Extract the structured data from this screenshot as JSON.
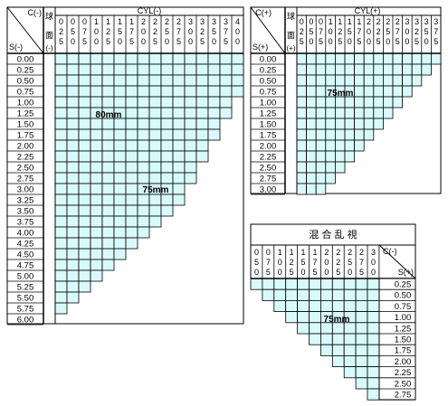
{
  "cyl_minus_table": {
    "corner_top": "C(-)",
    "corner_bottom": "S(-)",
    "sphere_col_header": [
      "球",
      "面",
      "(-)"
    ],
    "cyl_label": "CYL(-)",
    "cyl_values": [
      "0.25",
      "0.50",
      "0.75",
      "1.00",
      "1.25",
      "1.50",
      "1.75",
      "2.00",
      "2.25",
      "2.50",
      "2.75",
      "3.00",
      "3.25",
      "3.50",
      "3.75",
      "4.00"
    ],
    "sph_values": [
      "0.00",
      "0.25",
      "0.50",
      "0.75",
      "1.00",
      "1.25",
      "1.50",
      "1.75",
      "2.00",
      "2.25",
      "2.50",
      "2.75",
      "3.00",
      "3.25",
      "3.50",
      "3.75",
      "4.00",
      "4.25",
      "4.50",
      "4.75",
      "5.00",
      "5.25",
      "5.50",
      "5.75",
      "6.00"
    ],
    "zone_80_label": "80mm",
    "zone_75_label": "75mm"
  },
  "cyl_plus_table": {
    "corner_top": "C(+)",
    "corner_bottom": "S(+)",
    "sphere_col_header": [
      "球",
      "面",
      "(+)"
    ],
    "cyl_label": "CYL(+)",
    "cyl_values": [
      "0.25",
      "0.50",
      "0.75",
      "1.00",
      "1.25",
      "1.50",
      "1.75",
      "2.00",
      "2.25",
      "2.50",
      "2.75",
      "3.00",
      "3.25",
      "3.50",
      "3.75"
    ],
    "sph_values": [
      "0.00",
      "0.25",
      "0.50",
      "0.75",
      "1.00",
      "1.25",
      "1.50",
      "1.75",
      "2.00",
      "2.25",
      "2.50",
      "2.75",
      "3.00"
    ],
    "zone_label": "75mm"
  },
  "mixed_table": {
    "title": "混 合 乱 視",
    "corner_top": "C(-)",
    "corner_bottom": "S(+)",
    "cyl_values": [
      "0.50",
      "0.75",
      "1.00",
      "1.25",
      "1.50",
      "1.75",
      "2.00",
      "2.25",
      "2.50",
      "2.75",
      "3.00"
    ],
    "sph_values": [
      "0.25",
      "0.50",
      "0.75",
      "1.00",
      "1.25",
      "1.50",
      "1.75",
      "2.00",
      "2.25",
      "2.50",
      "2.75"
    ],
    "zone_label": "75mm"
  },
  "colors": {
    "cell_fill": "#d8fafa",
    "grid_line": "#000000",
    "background": "#ffffff"
  }
}
